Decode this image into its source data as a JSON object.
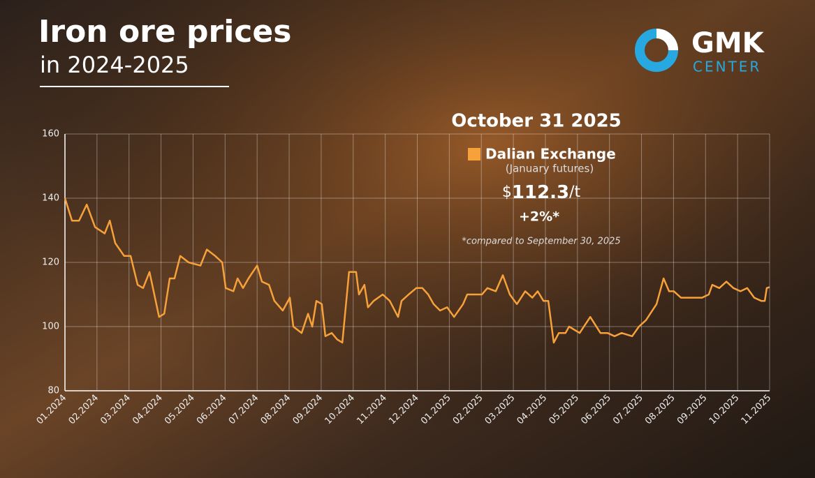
{
  "chart_data": {
    "type": "line",
    "title": "Iron ore prices",
    "subtitle": "in 2024-2025",
    "brand": {
      "name": "GMK",
      "sub": "CENTER"
    },
    "annotation": {
      "date": "October 31 2025",
      "note": "(January futures)",
      "currency": "$",
      "price": 112.3,
      "unit": "/t",
      "change": "+2%*",
      "footnote": "*compared to September 30, 2025"
    },
    "x": [
      0,
      0.22,
      0.44,
      0.68,
      0.94,
      1.24,
      1.4,
      1.57,
      1.85,
      2.05,
      2.27,
      2.44,
      2.64,
      2.94,
      3.1,
      3.27,
      3.42,
      3.6,
      3.86,
      4.23,
      4.43,
      4.69,
      4.91,
      5.02,
      5.26,
      5.39,
      5.56,
      5.73,
      6.0,
      6.15,
      6.37,
      6.54,
      6.8,
      7.02,
      7.13,
      7.39,
      7.59,
      7.72,
      7.85,
      8.02,
      8.13,
      8.33,
      8.5,
      8.66,
      8.87,
      9.09,
      9.18,
      9.35,
      9.46,
      9.64,
      9.92,
      10.14,
      10.4,
      10.51,
      10.73,
      10.97,
      11.16,
      11.34,
      11.51,
      11.71,
      11.93,
      12.15,
      12.43,
      12.56,
      13.02,
      13.19,
      13.45,
      13.67,
      13.89,
      14.11,
      14.37,
      14.59,
      14.76,
      14.94,
      15.09,
      15.26,
      15.42,
      15.63,
      15.74,
      16.07,
      16.4,
      16.72,
      16.94,
      17.16,
      17.38,
      17.71,
      17.92,
      18.14,
      18.47,
      18.69,
      18.86,
      19.01,
      19.23,
      19.56,
      19.89,
      20.1,
      20.21,
      20.43,
      20.65,
      20.87,
      21.09,
      21.3,
      21.52,
      21.74,
      21.85,
      21.91,
      22
    ],
    "series": [
      {
        "name": "Dalian Exchange",
        "color": "#f7a13b",
        "values": [
          140,
          133,
          133,
          138,
          131,
          129,
          133,
          126,
          122,
          122,
          113,
          112,
          117,
          103,
          104,
          115,
          115,
          122,
          120,
          119,
          124,
          122,
          120,
          112,
          111,
          115,
          112,
          115,
          119,
          114,
          113,
          108,
          105,
          109,
          100,
          98,
          104,
          100,
          108,
          107,
          97,
          98,
          96,
          95,
          117,
          117,
          110,
          113,
          106,
          108,
          110,
          108,
          103,
          108,
          110,
          112,
          112,
          110,
          107,
          105,
          106,
          103,
          107,
          110,
          110,
          112,
          111,
          116,
          110,
          107,
          111,
          109,
          111,
          108,
          108,
          95,
          98,
          98,
          100,
          98,
          103,
          98,
          98,
          97,
          98,
          97,
          100,
          102,
          107,
          115,
          111,
          111,
          109,
          109,
          109,
          110,
          113,
          112,
          114,
          112,
          111,
          112,
          109,
          108,
          108,
          112,
          112.3
        ]
      }
    ],
    "xlim": [
      0,
      22
    ],
    "xticks": [
      {
        "value": 0,
        "label": "01.2024"
      },
      {
        "value": 1,
        "label": "02.2024"
      },
      {
        "value": 2,
        "label": "03.2024"
      },
      {
        "value": 3,
        "label": "04.2024"
      },
      {
        "value": 4,
        "label": "05.2024"
      },
      {
        "value": 5,
        "label": "06.2024"
      },
      {
        "value": 6,
        "label": "07.2024"
      },
      {
        "value": 7,
        "label": "08.2024"
      },
      {
        "value": 8,
        "label": "09.2024"
      },
      {
        "value": 9,
        "label": "10.2024"
      },
      {
        "value": 10,
        "label": "11.2024"
      },
      {
        "value": 11,
        "label": "12.2024"
      },
      {
        "value": 12,
        "label": "01.2025"
      },
      {
        "value": 13,
        "label": "02.2025"
      },
      {
        "value": 14,
        "label": "03.2025"
      },
      {
        "value": 15,
        "label": "04.2025"
      },
      {
        "value": 16,
        "label": "05.2025"
      },
      {
        "value": 17,
        "label": "06.2025"
      },
      {
        "value": 18,
        "label": "07.2025"
      },
      {
        "value": 19,
        "label": "08.2025"
      },
      {
        "value": 20,
        "label": "09.2025"
      },
      {
        "value": 21,
        "label": "10.2025"
      },
      {
        "value": 22,
        "label": "11.2025"
      }
    ],
    "ylim": [
      80,
      160
    ],
    "yticks": [
      80,
      100,
      120,
      140,
      160
    ],
    "grid": true
  }
}
